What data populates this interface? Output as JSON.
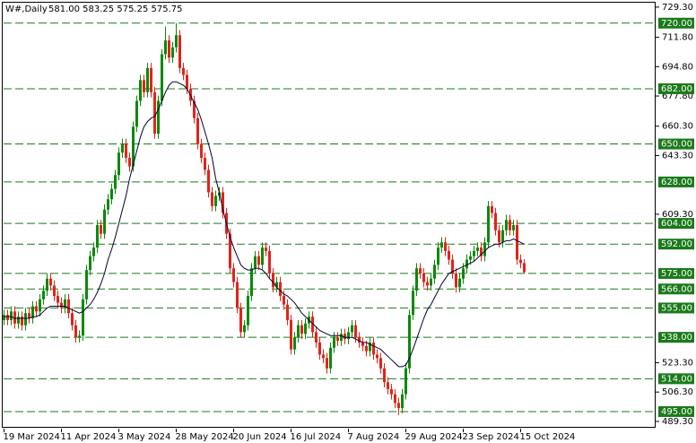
{
  "chart_data": {
    "type": "candlestick",
    "title": "W#,Daily",
    "quote": "581.00 583.25 575.25 575.75",
    "categories": [
      "19 Mar 2024",
      null,
      null,
      null,
      null,
      null,
      null,
      null,
      null,
      null,
      null,
      null,
      null,
      null,
      null,
      null,
      "11 Apr 2024",
      null,
      null,
      null,
      null,
      null,
      null,
      null,
      null,
      null,
      null,
      null,
      null,
      null,
      null,
      null,
      "3 May 2024",
      null,
      null,
      null,
      null,
      null,
      null,
      null,
      null,
      null,
      null,
      null,
      null,
      null,
      null,
      null,
      "28 May 2024",
      null,
      null,
      null,
      null,
      null,
      null,
      null,
      null,
      null,
      null,
      null,
      null,
      null,
      null,
      null,
      "20 Jun 2024",
      null,
      null,
      null,
      null,
      null,
      null,
      null,
      null,
      null,
      null,
      null,
      null,
      null,
      null,
      null,
      "16 Jul 2024",
      null,
      null,
      null,
      null,
      null,
      null,
      null,
      null,
      null,
      null,
      null,
      null,
      null,
      null,
      null,
      "7 Aug 2024",
      null,
      null,
      null,
      null,
      null,
      null,
      null,
      null,
      null,
      null,
      null,
      null,
      null,
      null,
      null,
      "29 Aug 2024",
      null,
      null,
      null,
      null,
      null,
      null,
      null,
      null,
      null,
      null,
      null,
      null,
      null,
      null,
      null,
      "23 Sep 2024",
      null,
      null,
      null,
      null,
      null,
      null,
      null,
      null,
      null,
      null,
      null,
      null,
      null,
      null,
      null,
      "15 Oct 2024",
      null
    ],
    "open": [
      548,
      551,
      548,
      553,
      546,
      550,
      545,
      552,
      549,
      556,
      553,
      560,
      565,
      572,
      568,
      562,
      558,
      555,
      560,
      552,
      545,
      538,
      539,
      560,
      577,
      585,
      590,
      603,
      598,
      612,
      618,
      624,
      632,
      645,
      650,
      642,
      637,
      660,
      675,
      687,
      680,
      694,
      680,
      656,
      675,
      702,
      710,
      700,
      706,
      713,
      694,
      690,
      682,
      675,
      665,
      650,
      642,
      635,
      622,
      614,
      620,
      622,
      610,
      598,
      578,
      570,
      555,
      541,
      545,
      562,
      578,
      585,
      580,
      590,
      588,
      575,
      567,
      570,
      562,
      557,
      548,
      531,
      538,
      545,
      540,
      546,
      550,
      541,
      535,
      528,
      526,
      520,
      532,
      538,
      536,
      540,
      537,
      541,
      545,
      538,
      535,
      533,
      530,
      535,
      528,
      526,
      520,
      512,
      508,
      505,
      500,
      497,
      505,
      520,
      551,
      565,
      578,
      575,
      570,
      568,
      572,
      580,
      590,
      593,
      588,
      583,
      575,
      567,
      572,
      578,
      583,
      585,
      588,
      590,
      585,
      593,
      614,
      610,
      600,
      593,
      600,
      606,
      600,
      603,
      583,
      581
    ],
    "high": [
      554,
      554,
      556,
      556,
      553,
      553,
      555,
      555,
      559,
      559,
      563,
      568,
      575,
      575,
      571,
      565,
      561,
      563,
      563,
      555,
      548,
      542,
      563,
      580,
      588,
      593,
      606,
      606,
      615,
      621,
      627,
      635,
      648,
      653,
      653,
      645,
      663,
      678,
      690,
      690,
      697,
      697,
      683,
      678,
      705,
      718,
      713,
      709,
      720,
      716,
      697,
      693,
      685,
      678,
      668,
      653,
      645,
      638,
      625,
      623,
      625,
      625,
      613,
      601,
      581,
      573,
      558,
      548,
      565,
      581,
      588,
      588,
      593,
      593,
      591,
      578,
      573,
      573,
      565,
      560,
      551,
      541,
      548,
      548,
      549,
      553,
      553,
      544,
      538,
      531,
      529,
      535,
      541,
      541,
      543,
      543,
      544,
      548,
      548,
      541,
      538,
      536,
      538,
      538,
      531,
      529,
      523,
      515,
      511,
      508,
      503,
      508,
      523,
      554,
      568,
      581,
      581,
      578,
      573,
      575,
      583,
      593,
      596,
      596,
      591,
      586,
      578,
      575,
      581,
      586,
      588,
      591,
      593,
      593,
      596,
      617,
      617,
      613,
      603,
      603,
      609,
      609,
      606,
      606,
      586,
      583.25
    ],
    "low": [
      545,
      545,
      545,
      543,
      543,
      542,
      542,
      546,
      546,
      550,
      550,
      557,
      562,
      565,
      559,
      555,
      552,
      552,
      549,
      542,
      535,
      535,
      536,
      557,
      574,
      582,
      587,
      595,
      595,
      609,
      615,
      621,
      629,
      642,
      639,
      634,
      634,
      657,
      672,
      677,
      677,
      677,
      653,
      653,
      672,
      699,
      697,
      697,
      703,
      691,
      687,
      679,
      672,
      662,
      647,
      639,
      632,
      619,
      611,
      611,
      617,
      607,
      595,
      575,
      567,
      552,
      538,
      538,
      542,
      559,
      575,
      577,
      577,
      585,
      572,
      564,
      564,
      559,
      554,
      545,
      528,
      528,
      535,
      537,
      537,
      543,
      538,
      532,
      525,
      523,
      517,
      517,
      529,
      533,
      533,
      534,
      534,
      538,
      535,
      532,
      530,
      527,
      527,
      525,
      523,
      517,
      509,
      505,
      502,
      497,
      493,
      494,
      502,
      517,
      548,
      562,
      572,
      567,
      565,
      565,
      569,
      577,
      587,
      585,
      580,
      572,
      564,
      564,
      569,
      575,
      580,
      582,
      585,
      582,
      582,
      590,
      607,
      597,
      590,
      590,
      597,
      597,
      597,
      580,
      578,
      575.25
    ],
    "close": [
      551,
      548,
      553,
      546,
      550,
      545,
      552,
      549,
      556,
      553,
      560,
      565,
      572,
      568,
      562,
      558,
      555,
      560,
      552,
      545,
      538,
      539,
      560,
      577,
      585,
      590,
      603,
      598,
      612,
      618,
      624,
      632,
      645,
      650,
      642,
      637,
      660,
      675,
      687,
      680,
      694,
      680,
      656,
      675,
      702,
      710,
      700,
      706,
      713,
      694,
      690,
      682,
      675,
      665,
      650,
      642,
      635,
      622,
      614,
      620,
      622,
      610,
      598,
      578,
      570,
      555,
      541,
      545,
      562,
      578,
      585,
      580,
      590,
      588,
      575,
      567,
      570,
      562,
      557,
      548,
      531,
      538,
      545,
      540,
      546,
      550,
      541,
      535,
      528,
      526,
      520,
      532,
      538,
      536,
      540,
      537,
      541,
      545,
      538,
      535,
      533,
      530,
      535,
      528,
      526,
      520,
      512,
      508,
      505,
      500,
      497,
      505,
      520,
      551,
      565,
      578,
      575,
      570,
      568,
      572,
      580,
      590,
      593,
      588,
      583,
      575,
      567,
      572,
      578,
      583,
      585,
      588,
      590,
      585,
      593,
      614,
      610,
      600,
      593,
      600,
      606,
      600,
      603,
      583,
      581,
      575.75
    ],
    "ma": [
      550,
      550,
      550,
      549,
      549,
      549,
      549,
      549,
      550,
      550,
      551,
      553,
      555,
      556,
      556,
      556,
      556,
      556,
      555,
      554,
      553,
      552,
      553,
      555,
      557,
      560,
      564,
      569,
      575,
      583,
      589,
      596,
      604,
      612,
      620,
      630,
      638,
      646,
      654,
      660,
      663,
      665,
      666,
      670,
      675,
      680,
      684,
      686,
      686,
      685,
      684,
      682,
      678,
      674,
      670,
      664,
      657,
      650,
      642,
      630,
      622,
      612,
      604,
      596,
      590,
      585,
      580,
      578,
      577,
      577,
      578,
      578,
      577,
      575,
      572,
      570,
      567,
      565,
      563,
      562,
      560,
      558,
      555,
      552,
      550,
      548,
      546,
      544,
      542,
      541,
      540,
      539,
      539,
      539,
      539,
      538,
      538,
      538,
      537,
      536,
      535,
      535,
      534,
      533,
      532,
      531,
      529,
      527,
      525,
      523,
      521,
      521,
      522,
      526,
      531,
      537,
      543,
      549,
      554,
      557,
      561,
      565,
      569,
      572,
      575,
      576,
      577,
      578,
      579,
      580,
      581,
      582,
      584,
      586,
      588,
      590,
      591,
      592,
      592,
      593,
      594,
      594,
      595,
      594,
      593,
      592
    ],
    "up_color": "#0a8a0a",
    "down_color": "#e2231a",
    "ma_color": "#000033",
    "level_color": "#1a7a1a",
    "ylim": [
      485.1,
      733.4
    ],
    "yticks": [
      {
        "value": 729.3,
        "label": "729.30"
      },
      {
        "value": 711.8,
        "label": "711.80"
      },
      {
        "value": 694.8,
        "label": "694.80"
      },
      {
        "value": 677.8,
        "label": "677.80"
      },
      {
        "value": 660.3,
        "label": "660.30"
      },
      {
        "value": 643.3,
        "label": "643.30"
      },
      {
        "value": 609.3,
        "label": "609.30"
      },
      {
        "value": 523.3,
        "label": "523.30"
      },
      {
        "value": 506.3,
        "label": "506.30"
      },
      {
        "value": 489.3,
        "label": "489.30"
      }
    ],
    "levels": [
      {
        "value": 720,
        "label": "720.00"
      },
      {
        "value": 682,
        "label": "682.00"
      },
      {
        "value": 650,
        "label": "650.00"
      },
      {
        "value": 628,
        "label": "628.00"
      },
      {
        "value": 604,
        "label": "604.00"
      },
      {
        "value": 592,
        "label": "592.00"
      },
      {
        "value": 575,
        "label": "575.00"
      },
      {
        "value": 566,
        "label": "566.00"
      },
      {
        "value": 555,
        "label": "555.00"
      },
      {
        "value": 538,
        "label": "538.00"
      },
      {
        "value": 514,
        "label": "514.00"
      },
      {
        "value": 495,
        "label": "495.00"
      }
    ]
  }
}
